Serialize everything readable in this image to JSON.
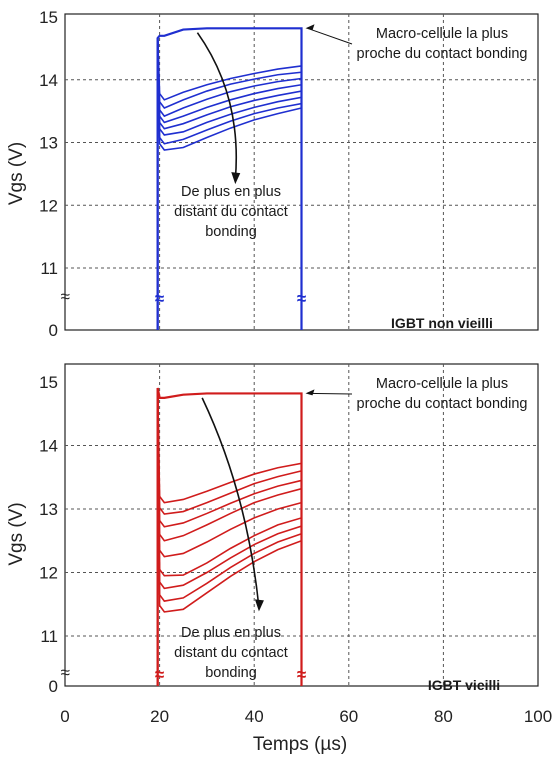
{
  "chart_data": [
    {
      "type": "line",
      "color": "#1f2fd0",
      "ylabel": "Vgs (V)",
      "xlim": [
        0,
        100
      ],
      "ylim": [
        10.5,
        15
      ],
      "y_ticks": [
        11,
        12,
        13,
        14,
        15
      ],
      "y_break": {
        "below": 11,
        "label": "0",
        "tick": "≈"
      },
      "x_break_marks": [
        20,
        50
      ],
      "grid": true,
      "tag": "IGBT non vieilli",
      "annotation_top": [
        "Macro-cellule la plus",
        "proche du contact bonding"
      ],
      "annotation_bottom": [
        "De plus en plus",
        "distant du contact",
        "bonding"
      ],
      "pulse": {
        "on": 20,
        "off": 50
      },
      "series": [
        {
          "values_at": [
            21,
            25,
            30,
            35,
            40,
            45,
            50
          ],
          "values": [
            14.7,
            14.8,
            14.82,
            14.82,
            14.82,
            14.82,
            14.82
          ]
        },
        {
          "values_at": [
            21,
            25,
            30,
            35,
            40,
            45,
            50
          ],
          "values": [
            13.68,
            13.8,
            13.92,
            14.02,
            14.1,
            14.17,
            14.22
          ]
        },
        {
          "values_at": [
            21,
            25,
            30,
            35,
            40,
            45,
            50
          ],
          "values": [
            13.55,
            13.68,
            13.82,
            13.93,
            14.01,
            14.08,
            14.12
          ]
        },
        {
          "values_at": [
            21,
            25,
            30,
            35,
            40,
            45,
            50
          ],
          "values": [
            13.42,
            13.55,
            13.69,
            13.81,
            13.9,
            13.97,
            14.02
          ]
        },
        {
          "values_at": [
            21,
            25,
            30,
            35,
            40,
            45,
            50
          ],
          "values": [
            13.32,
            13.42,
            13.56,
            13.68,
            13.78,
            13.86,
            13.92
          ]
        },
        {
          "values_at": [
            21,
            25,
            30,
            35,
            40,
            45,
            50
          ],
          "values": [
            13.22,
            13.3,
            13.44,
            13.57,
            13.67,
            13.75,
            13.82
          ]
        },
        {
          "values_at": [
            21,
            25,
            30,
            35,
            40,
            45,
            50
          ],
          "values": [
            13.12,
            13.17,
            13.32,
            13.45,
            13.56,
            13.65,
            13.72
          ]
        },
        {
          "values_at": [
            21,
            25,
            30,
            35,
            40,
            45,
            50
          ],
          "values": [
            12.98,
            13.05,
            13.2,
            13.34,
            13.46,
            13.55,
            13.62
          ]
        },
        {
          "values_at": [
            21,
            25,
            30,
            35,
            40,
            45,
            50
          ],
          "values": [
            12.88,
            12.92,
            13.08,
            13.23,
            13.36,
            13.46,
            13.55
          ]
        }
      ]
    },
    {
      "type": "line",
      "color": "#d01c1c",
      "ylabel": "Vgs (V)",
      "xlabel": "Temps (µs)",
      "xlim": [
        0,
        100
      ],
      "ylim": [
        10.5,
        15
      ],
      "x_ticks": [
        0,
        20,
        40,
        60,
        80,
        100
      ],
      "y_ticks": [
        11,
        12,
        13,
        14,
        15
      ],
      "y_break": {
        "below": 11,
        "label": "0",
        "tick": "≈"
      },
      "x_break_marks": [
        20,
        50
      ],
      "grid": true,
      "tag": "IGBT vieilli",
      "annotation_top": [
        "Macro-cellule la plus",
        "proche du contact bonding"
      ],
      "annotation_bottom": [
        "De plus en plus",
        "distant du contact",
        "bonding"
      ],
      "pulse": {
        "on": 20,
        "off": 50
      },
      "series": [
        {
          "values_at": [
            21,
            25,
            30,
            35,
            40,
            45,
            50
          ],
          "values": [
            14.75,
            14.8,
            14.82,
            14.82,
            14.82,
            14.82,
            14.82
          ]
        },
        {
          "values_at": [
            21,
            25,
            30,
            35,
            40,
            45,
            50
          ],
          "values": [
            13.1,
            13.15,
            13.28,
            13.42,
            13.55,
            13.65,
            13.72
          ]
        },
        {
          "values_at": [
            21,
            25,
            30,
            35,
            40,
            45,
            50
          ],
          "values": [
            12.92,
            12.96,
            13.1,
            13.25,
            13.4,
            13.51,
            13.6
          ]
        },
        {
          "values_at": [
            21,
            25,
            30,
            35,
            40,
            45,
            50
          ],
          "values": [
            12.72,
            12.78,
            12.93,
            13.09,
            13.24,
            13.36,
            13.45
          ]
        },
        {
          "values_at": [
            21,
            25,
            30,
            35,
            40,
            45,
            50
          ],
          "values": [
            12.5,
            12.58,
            12.75,
            12.93,
            13.1,
            13.22,
            13.32
          ]
        },
        {
          "values_at": [
            21,
            25,
            30,
            35,
            40,
            45,
            50
          ],
          "values": [
            12.25,
            12.3,
            12.48,
            12.68,
            12.86,
            13.0,
            13.1
          ]
        },
        {
          "values_at": [
            21,
            25,
            30,
            35,
            40,
            45,
            50
          ],
          "values": [
            11.95,
            11.96,
            12.15,
            12.38,
            12.58,
            12.75,
            12.86
          ]
        },
        {
          "values_at": [
            21,
            25,
            30,
            35,
            40,
            45,
            50
          ],
          "values": [
            11.75,
            11.8,
            12.0,
            12.23,
            12.44,
            12.61,
            12.73
          ]
        },
        {
          "values_at": [
            21,
            25,
            30,
            35,
            40,
            45,
            50
          ],
          "values": [
            11.55,
            11.6,
            11.83,
            12.08,
            12.3,
            12.48,
            12.61
          ]
        },
        {
          "values_at": [
            21,
            25,
            30,
            35,
            40,
            45,
            50
          ],
          "values": [
            11.38,
            11.42,
            11.68,
            11.94,
            12.17,
            12.36,
            12.5
          ]
        }
      ]
    }
  ]
}
